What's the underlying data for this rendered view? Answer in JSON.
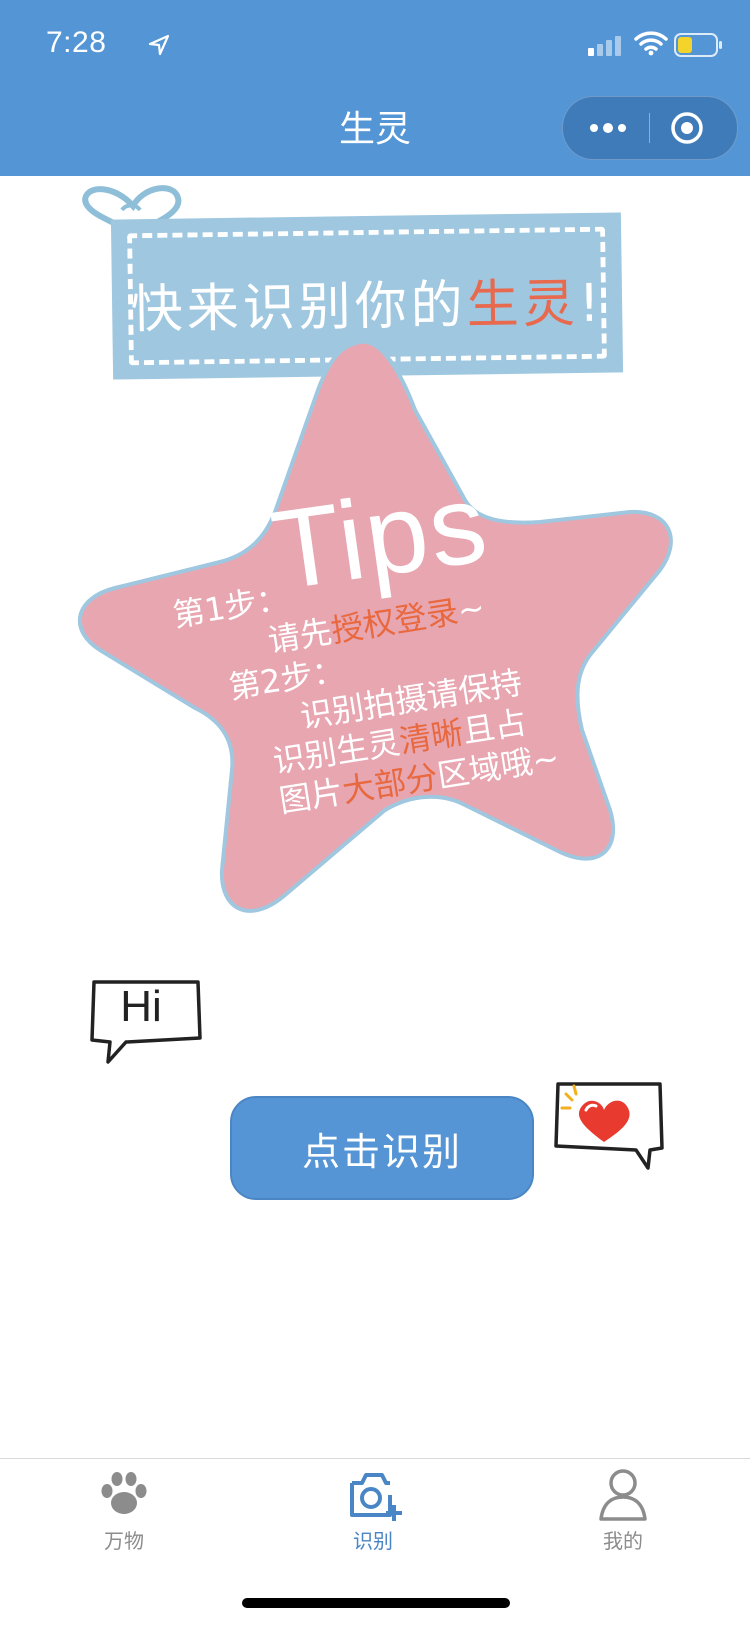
{
  "status_bar": {
    "time": "7:28"
  },
  "nav": {
    "title": "生灵"
  },
  "banner": {
    "text_main": "快来识别你的",
    "text_highlight": "生灵",
    "text_end": "!"
  },
  "tips": {
    "title": "Tips",
    "step1_label": "第1步：",
    "step1_pre": "请先",
    "step1_hl": "授权登录",
    "step1_post": "~",
    "step2_label": "第2步：",
    "step2_line1": "识别拍摄请保持",
    "step2_line2_pre": "识别生灵",
    "step2_line2_hl": "清晰",
    "step2_line2_post": "且占",
    "step2_line3_pre": "图片",
    "step2_line3_hl": "大部分",
    "step2_line3_post": "区域哦~"
  },
  "bubbles": {
    "hi_text": "Hi"
  },
  "main_button": {
    "label": "点击识别"
  },
  "tabbar": {
    "tabs": [
      {
        "label": "万物",
        "icon": "paw-icon",
        "active": false
      },
      {
        "label": "识别",
        "icon": "camera-add-icon",
        "active": true
      },
      {
        "label": "我的",
        "icon": "user-icon",
        "active": false
      }
    ]
  },
  "colors": {
    "nav_bg": "#5495d6",
    "banner_bg": "#9fc7df",
    "star_fill": "#e8a6b1",
    "highlight": "#e8694d",
    "button_bg": "#5695d5",
    "tab_active": "#4a86c5",
    "tab_inactive": "#8c8c8c"
  }
}
